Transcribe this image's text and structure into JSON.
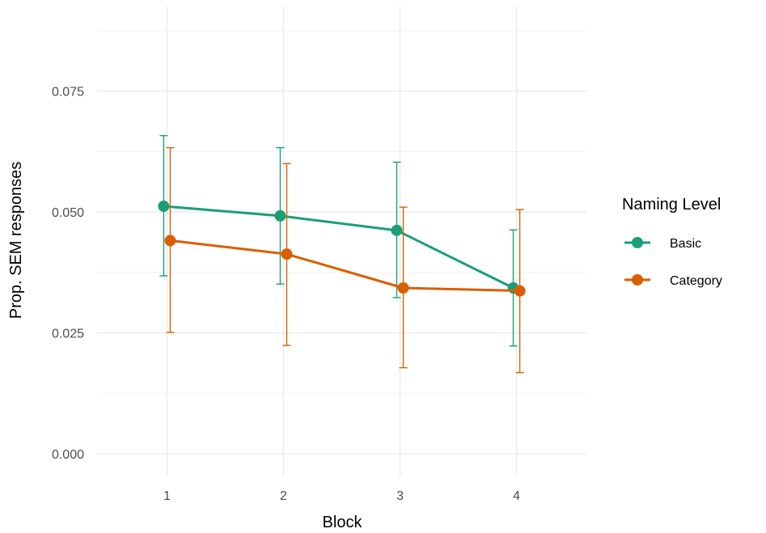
{
  "chart_data": {
    "type": "line",
    "xlabel": "Block",
    "ylabel": "Prop. SEM responses",
    "categories": [
      "1",
      "2",
      "3",
      "4"
    ],
    "x": [
      1,
      2,
      3,
      4
    ],
    "yticks": [
      "0.000",
      "0.025",
      "0.050",
      "0.075"
    ],
    "ylim": [
      -0.0045,
      0.0925
    ],
    "xlim": [
      0.4,
      4.6
    ],
    "grid": true,
    "legend": {
      "title": "Naming Level",
      "placement": "right"
    },
    "series": [
      {
        "name": "Basic",
        "color": "#1b9e77",
        "values": [
          0.0512,
          0.0492,
          0.0462,
          0.0343
        ],
        "error_low": [
          0.0368,
          0.0351,
          0.0323,
          0.0223
        ],
        "error_high": [
          0.0658,
          0.0633,
          0.0603,
          0.0463
        ]
      },
      {
        "name": "Category",
        "color": "#d95f02",
        "values": [
          0.0441,
          0.0413,
          0.0343,
          0.0337
        ],
        "error_low": [
          0.0251,
          0.0224,
          0.0178,
          0.0168
        ],
        "error_high": [
          0.0633,
          0.06,
          0.051,
          0.0505
        ]
      }
    ]
  }
}
